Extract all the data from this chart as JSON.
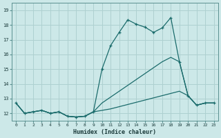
{
  "xlabel": "Humidex (Indice chaleur)",
  "background_color": "#cce8e8",
  "line_color": "#1a6b6b",
  "grid_color": "#aed0d0",
  "xlim": [
    -0.5,
    23.5
  ],
  "ylim": [
    11.5,
    19.5
  ],
  "yticks": [
    12,
    13,
    14,
    15,
    16,
    17,
    18,
    19
  ],
  "xticks": [
    0,
    1,
    2,
    3,
    4,
    5,
    6,
    7,
    8,
    9,
    10,
    11,
    12,
    13,
    14,
    15,
    16,
    17,
    18,
    19,
    20,
    21,
    22,
    23
  ],
  "series1_x": [
    0,
    1,
    2,
    3,
    4,
    5,
    6,
    7,
    8,
    9,
    10,
    11,
    12,
    13,
    14,
    15,
    16,
    17,
    18,
    19,
    20,
    21,
    22,
    23
  ],
  "series1_y": [
    12.7,
    12.0,
    12.1,
    12.2,
    12.0,
    12.1,
    11.8,
    11.75,
    11.8,
    12.1,
    15.0,
    16.6,
    17.5,
    18.35,
    18.05,
    17.85,
    17.5,
    17.8,
    18.5,
    15.5,
    13.2,
    12.55,
    12.7,
    12.7
  ],
  "series2_x": [
    0,
    1,
    2,
    3,
    4,
    5,
    6,
    7,
    8,
    9,
    10,
    11,
    12,
    13,
    14,
    15,
    16,
    17,
    18,
    19,
    20,
    21,
    22,
    23
  ],
  "series2_y": [
    12.7,
    12.0,
    12.1,
    12.2,
    12.0,
    12.1,
    11.8,
    11.75,
    11.8,
    12.1,
    12.7,
    13.1,
    13.5,
    13.9,
    14.3,
    14.7,
    15.1,
    15.5,
    15.8,
    15.5,
    13.2,
    12.55,
    12.7,
    12.7
  ],
  "series3_x": [
    0,
    1,
    2,
    3,
    4,
    5,
    6,
    7,
    8,
    9,
    10,
    11,
    12,
    13,
    14,
    15,
    16,
    17,
    18,
    19,
    20,
    21,
    22,
    23
  ],
  "series3_y": [
    12.7,
    12.0,
    12.1,
    12.2,
    12.0,
    12.1,
    11.8,
    11.75,
    11.8,
    12.1,
    12.2,
    12.3,
    12.45,
    12.6,
    12.75,
    12.9,
    13.05,
    13.2,
    13.35,
    13.5,
    13.2,
    12.55,
    12.7,
    12.7
  ]
}
